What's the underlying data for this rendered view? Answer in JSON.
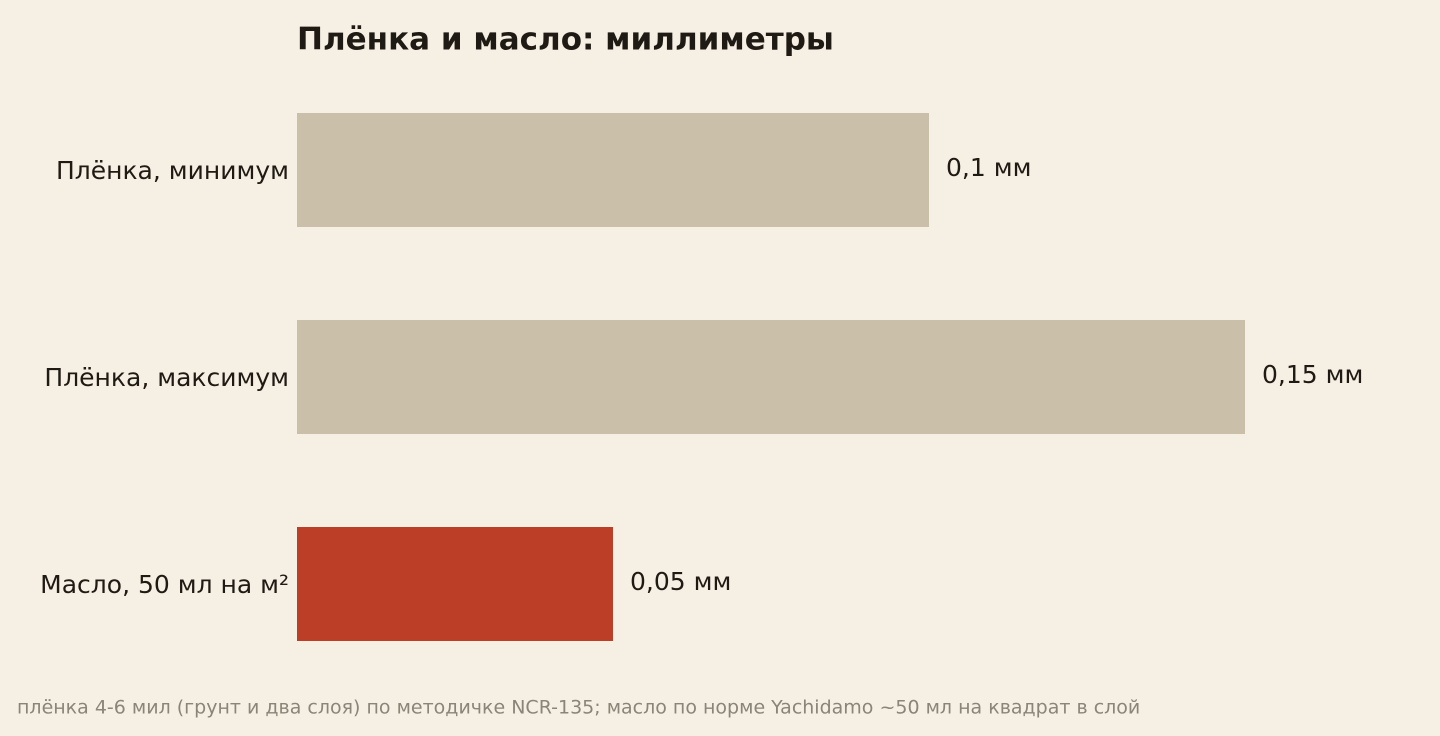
{
  "chart_data": {
    "type": "bar",
    "orientation": "horizontal",
    "title": "Плёнка и масло: миллиметры",
    "categories": [
      "Плёнка, минимум",
      "Плёнка, максимум",
      "Масло, 50 мл на м²"
    ],
    "values": [
      0.1,
      0.15,
      0.05
    ],
    "value_labels": [
      "0,1 мм",
      "0,15 мм",
      "0,05 мм"
    ],
    "colors": [
      "#cabfa8",
      "#cabfa8",
      "#bd3e27"
    ],
    "note": "плёнка 4-6 мил (грунт и два слоя) по методичке NCR-135; масло по норме Yachidamo ~50 мл на квадрат в слой"
  }
}
